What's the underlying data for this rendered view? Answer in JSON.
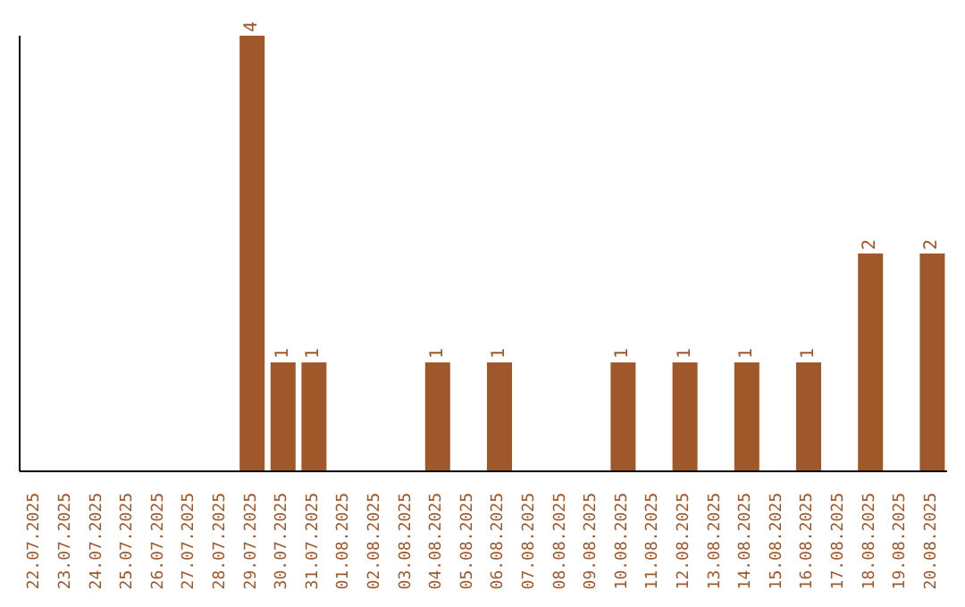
{
  "chart_data": {
    "type": "bar",
    "categories": [
      "22.07.2025",
      "23.07.2025",
      "24.07.2025",
      "25.07.2025",
      "26.07.2025",
      "27.07.2025",
      "28.07.2025",
      "29.07.2025",
      "30.07.2025",
      "31.07.2025",
      "01.08.2025",
      "02.08.2025",
      "03.08.2025",
      "04.08.2025",
      "05.08.2025",
      "06.08.2025",
      "07.08.2025",
      "08.08.2025",
      "09.08.2025",
      "10.08.2025",
      "11.08.2025",
      "12.08.2025",
      "13.08.2025",
      "14.08.2025",
      "15.08.2025",
      "16.08.2025",
      "17.08.2025",
      "18.08.2025",
      "19.08.2025",
      "20.08.2025"
    ],
    "values": [
      0,
      0,
      0,
      0,
      0,
      0,
      0,
      4,
      1,
      1,
      0,
      0,
      0,
      1,
      0,
      1,
      0,
      0,
      0,
      1,
      0,
      1,
      0,
      1,
      0,
      1,
      0,
      2,
      0,
      2
    ],
    "value_labels": [
      null,
      null,
      null,
      null,
      null,
      null,
      null,
      "4",
      "1",
      "1",
      null,
      null,
      null,
      "1",
      null,
      "1",
      null,
      null,
      null,
      "1",
      null,
      "1",
      null,
      "1",
      null,
      "1",
      null,
      "2",
      null,
      "2"
    ],
    "color": "#a0572a",
    "tick_labels": "x",
    "grid": false,
    "legend": false
  }
}
